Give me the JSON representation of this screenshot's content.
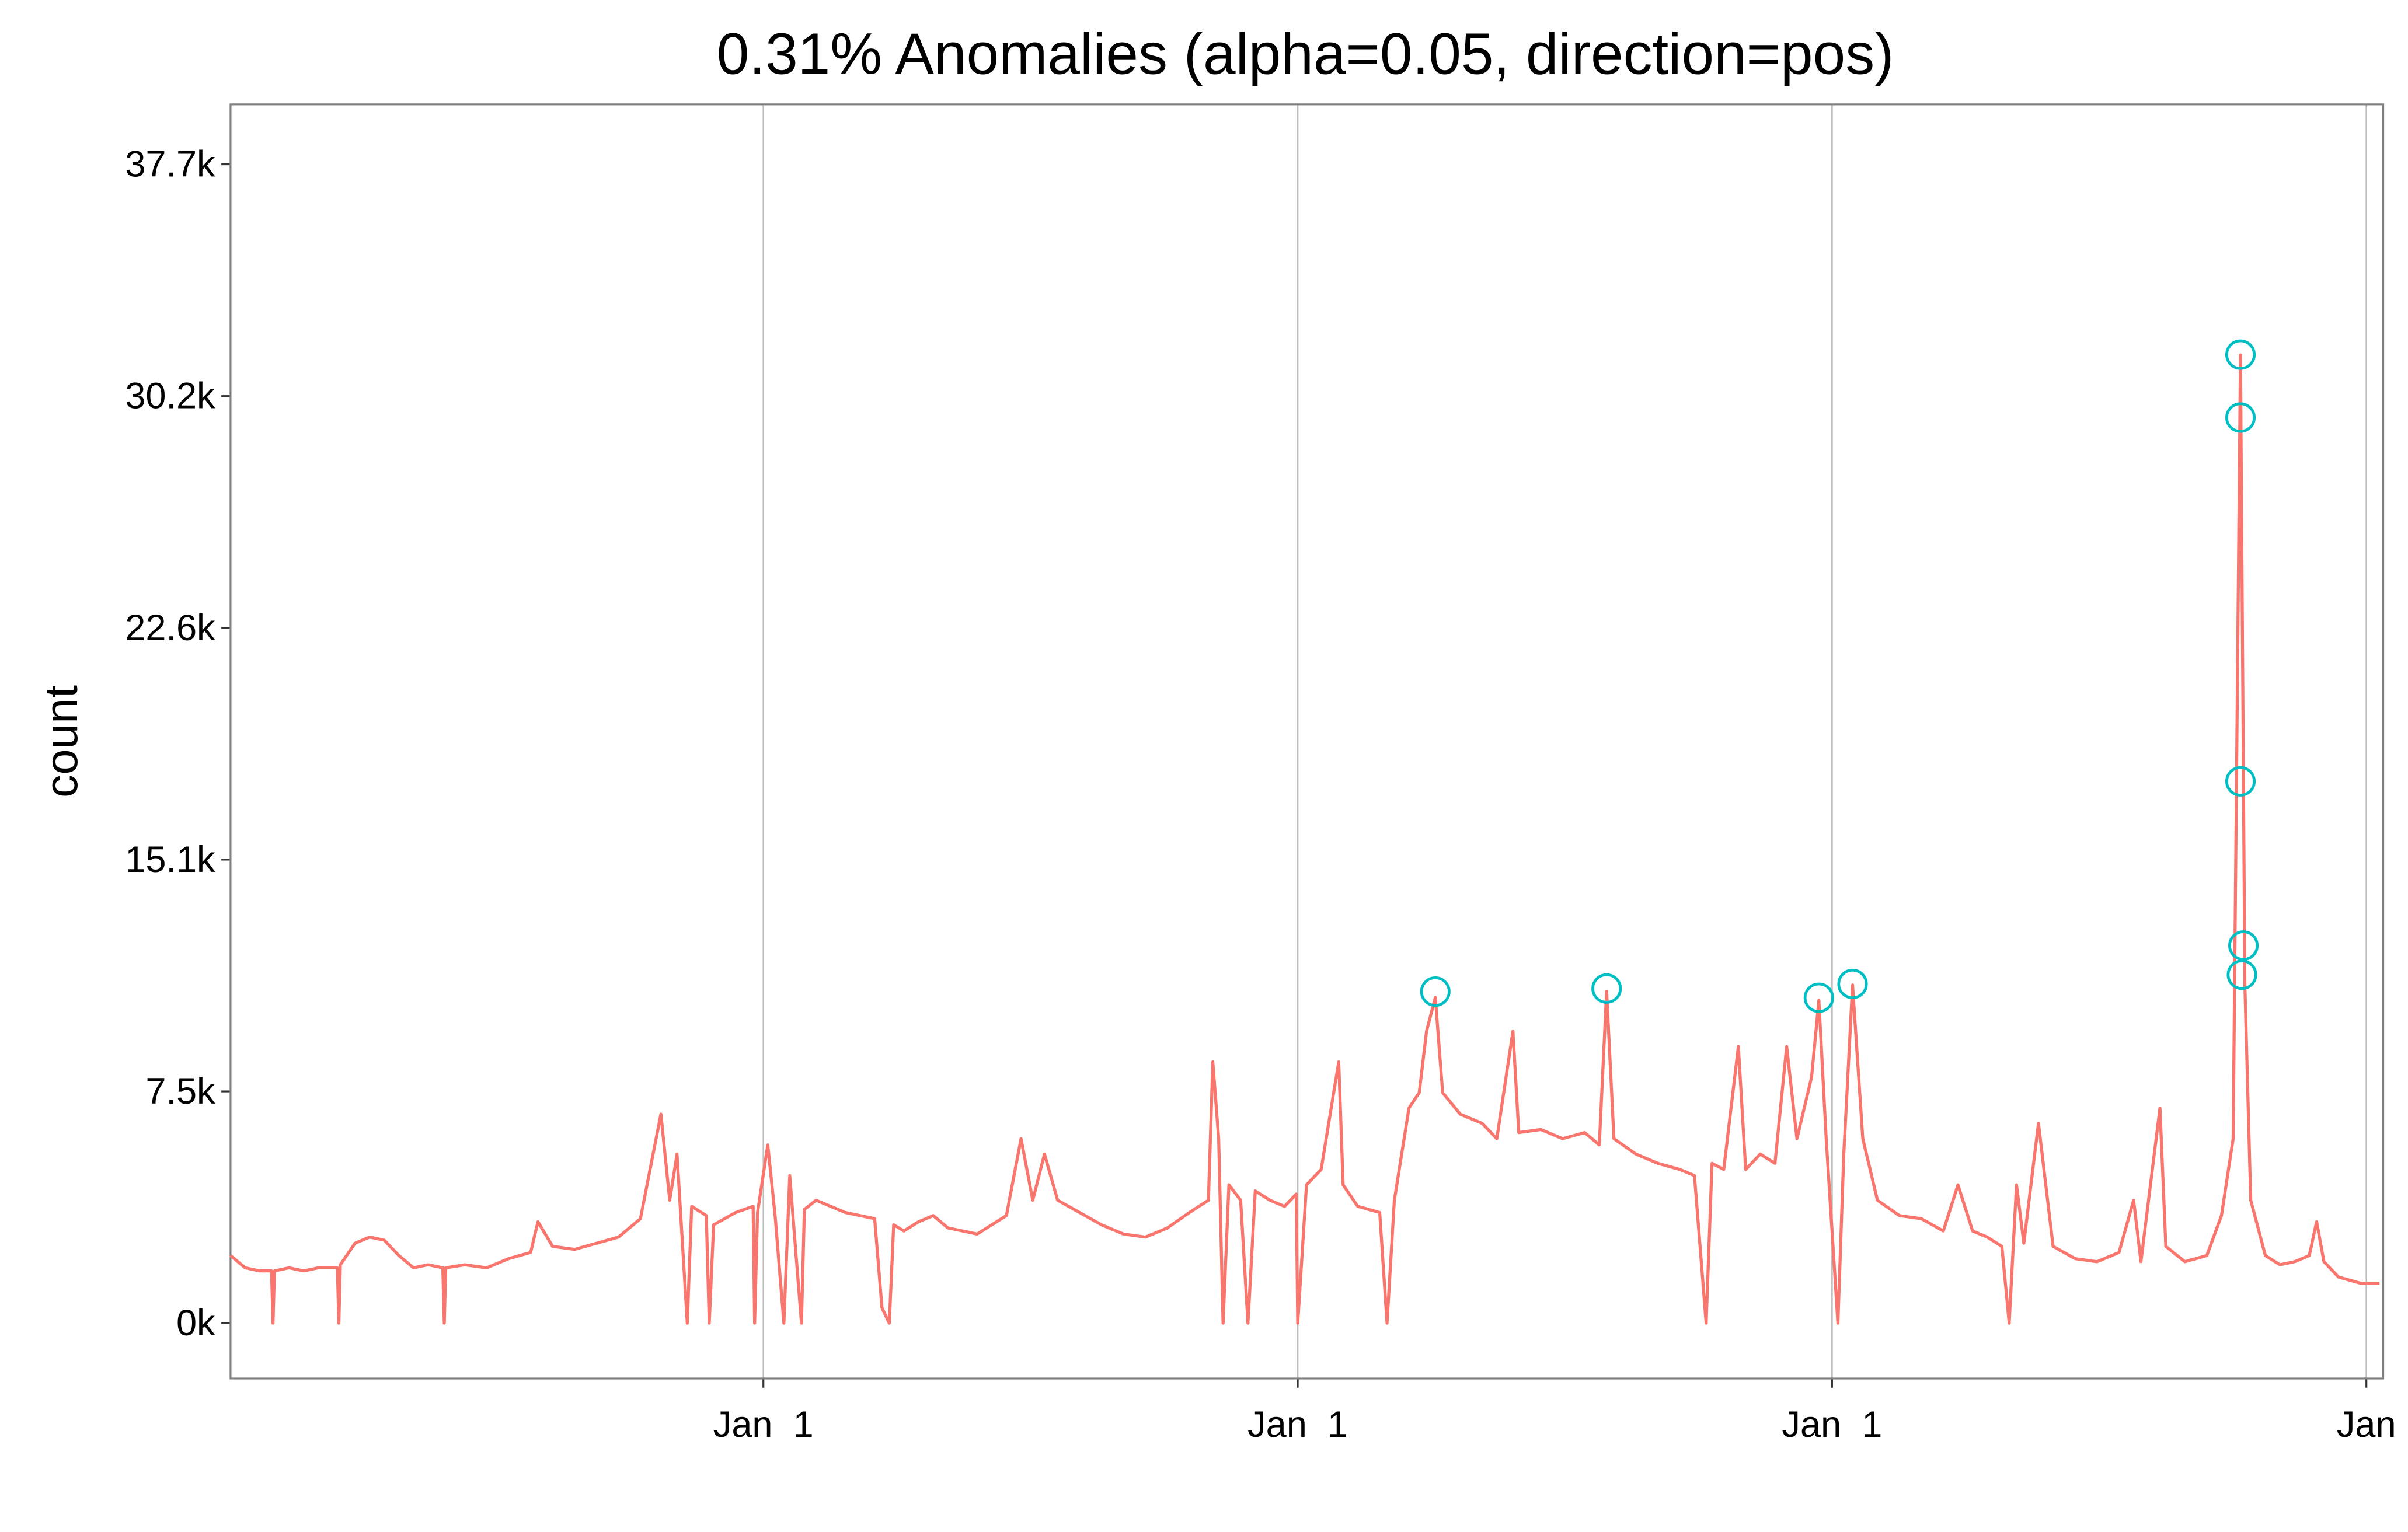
{
  "chart_data": {
    "type": "line",
    "title": "0.31% Anomalies (alpha=0.05, direction=pos)",
    "y_label": "count",
    "xlim": [
      0,
      1470.5
    ],
    "xticks": [
      {
        "value": 364,
        "label": "Jan  1"
      },
      {
        "value": 729,
        "label": "Jan  1"
      },
      {
        "value": 1094,
        "label": "Jan  1"
      },
      {
        "value": 1459,
        "label": "Jan"
      }
    ],
    "ylim": [
      -1800,
      39650
    ],
    "yticks": [
      {
        "value": 0,
        "label": "0k"
      },
      {
        "value": 7540,
        "label": "7.5k"
      },
      {
        "value": 15080,
        "label": "15.1k"
      },
      {
        "value": 22620,
        "label": "22.6k"
      },
      {
        "value": 30160,
        "label": "30.2k"
      },
      {
        "value": 37700,
        "label": "37.7k"
      }
    ],
    "grid": "x",
    "series": [
      {
        "type": "line",
        "color": "#f8766d",
        "x": [
          0,
          10,
          20,
          28,
          29,
          30,
          40,
          50,
          60,
          73,
          74,
          75,
          85,
          95,
          105,
          115,
          125,
          135,
          145,
          146,
          147,
          160,
          175,
          190,
          205,
          210,
          220,
          235,
          250,
          265,
          280,
          294,
          300,
          305,
          312,
          315,
          325,
          327,
          330,
          345,
          357,
          358,
          360,
          367,
          372,
          378,
          382,
          390,
          392,
          400,
          410,
          420,
          430,
          440,
          445,
          450,
          453,
          460,
          470,
          480,
          490,
          500,
          510,
          520,
          530,
          540,
          548,
          556,
          565,
          580,
          595,
          610,
          625,
          640,
          655,
          668,
          671,
          675,
          678,
          682,
          690,
          695,
          700,
          710,
          720,
          728,
          729,
          735,
          745,
          757,
          760,
          770,
          785,
          790,
          795,
          805,
          812,
          817,
          823,
          828,
          840,
          855,
          865,
          876,
          880,
          895,
          910,
          925,
          935,
          940,
          945,
          960,
          975,
          990,
          1000,
          1008,
          1012,
          1020,
          1030,
          1035,
          1045,
          1055,
          1063,
          1070,
          1080,
          1085,
          1090,
          1098,
          1102,
          1108,
          1115,
          1125,
          1140,
          1155,
          1170,
          1180,
          1190,
          1200,
          1210,
          1215,
          1220,
          1225,
          1235,
          1245,
          1260,
          1275,
          1290,
          1300,
          1305,
          1318,
          1322,
          1335,
          1350,
          1360,
          1368,
          1373,
          1376,
          1380,
          1390,
          1400,
          1410,
          1420,
          1425,
          1430,
          1440,
          1455,
          1468
        ],
        "values": [
          2200,
          1800,
          1700,
          1700,
          0,
          1700,
          1800,
          1700,
          1800,
          1800,
          0,
          1900,
          2600,
          2800,
          2700,
          2200,
          1800,
          1900,
          1800,
          0,
          1800,
          1900,
          1800,
          2100,
          2300,
          3300,
          2500,
          2400,
          2600,
          2800,
          3400,
          6800,
          4000,
          5500,
          0,
          3800,
          3500,
          0,
          3200,
          3600,
          3800,
          0,
          3600,
          5800,
          3500,
          0,
          4800,
          0,
          3700,
          4000,
          3800,
          3600,
          3500,
          3400,
          500,
          0,
          3200,
          3000,
          3300,
          3500,
          3100,
          3000,
          2900,
          3200,
          3500,
          6000,
          4000,
          5500,
          4000,
          3600,
          3200,
          2900,
          2800,
          3100,
          3600,
          4000,
          8500,
          6000,
          0,
          4500,
          4000,
          0,
          4300,
          4000,
          3800,
          4200,
          0,
          4500,
          5000,
          8500,
          4500,
          3800,
          3600,
          0,
          4000,
          7000,
          7500,
          9500,
          10600,
          7500,
          6800,
          6500,
          6000,
          9500,
          6200,
          6300,
          6000,
          6200,
          5800,
          10800,
          6000,
          5500,
          5200,
          5000,
          4800,
          0,
          5200,
          5000,
          9000,
          5000,
          5500,
          5200,
          9000,
          6000,
          8000,
          10500,
          6000,
          0,
          5500,
          11000,
          6000,
          4000,
          3500,
          3400,
          3000,
          4500,
          3000,
          2800,
          2500,
          0,
          4500,
          2600,
          6500,
          2500,
          2100,
          2000,
          2300,
          4000,
          2000,
          7000,
          2500,
          2000,
          2200,
          3500,
          6000,
          31500,
          11000,
          4000,
          2200,
          1900,
          2000,
          2200,
          3300,
          2000,
          1500,
          1300,
          1300
        ]
      },
      {
        "type": "scatter",
        "color": "#00bfc4",
        "x": [
          823,
          940,
          1085,
          1108,
          1373,
          1373,
          1373,
          1375,
          1374
        ],
        "values": [
          10786,
          10886,
          10586,
          11035,
          31509,
          29462,
          17626,
          12284,
          11335
        ]
      }
    ]
  }
}
